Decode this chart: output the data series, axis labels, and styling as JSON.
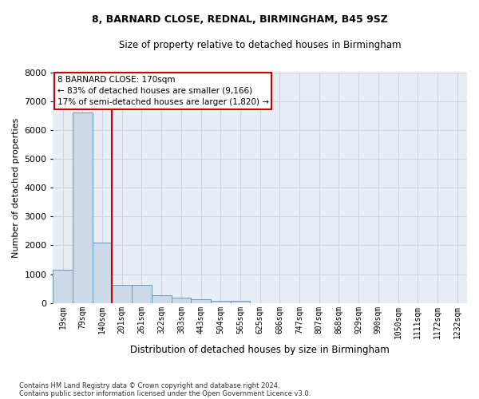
{
  "title": "8, BARNARD CLOSE, REDNAL, BIRMINGHAM, B45 9SZ",
  "subtitle": "Size of property relative to detached houses in Birmingham",
  "xlabel": "Distribution of detached houses by size in Birmingham",
  "ylabel": "Number of detached properties",
  "footnote1": "Contains HM Land Registry data © Crown copyright and database right 2024.",
  "footnote2": "Contains public sector information licensed under the Open Government Licence v3.0.",
  "bin_labels": [
    "19sqm",
    "79sqm",
    "140sqm",
    "201sqm",
    "261sqm",
    "322sqm",
    "383sqm",
    "443sqm",
    "504sqm",
    "565sqm",
    "625sqm",
    "686sqm",
    "747sqm",
    "807sqm",
    "868sqm",
    "929sqm",
    "990sqm",
    "1050sqm",
    "1111sqm",
    "1172sqm",
    "1232sqm"
  ],
  "bar_heights": [
    1150,
    6600,
    2100,
    620,
    620,
    280,
    175,
    120,
    80,
    70,
    0,
    0,
    0,
    0,
    0,
    0,
    0,
    0,
    0,
    0,
    0
  ],
  "bar_color": "#ccd9e8",
  "bar_edge_color": "#6699bb",
  "grid_color": "#ccd5e0",
  "background_color": "#e8eef5",
  "red_line_x": 2.48,
  "annotation_text": "8 BARNARD CLOSE: 170sqm\n← 83% of detached houses are smaller (9,166)\n17% of semi-detached houses are larger (1,820) →",
  "annotation_box_color": "#cc0000",
  "ylim": [
    0,
    8000
  ],
  "yticks": [
    0,
    1000,
    2000,
    3000,
    4000,
    5000,
    6000,
    7000,
    8000
  ]
}
